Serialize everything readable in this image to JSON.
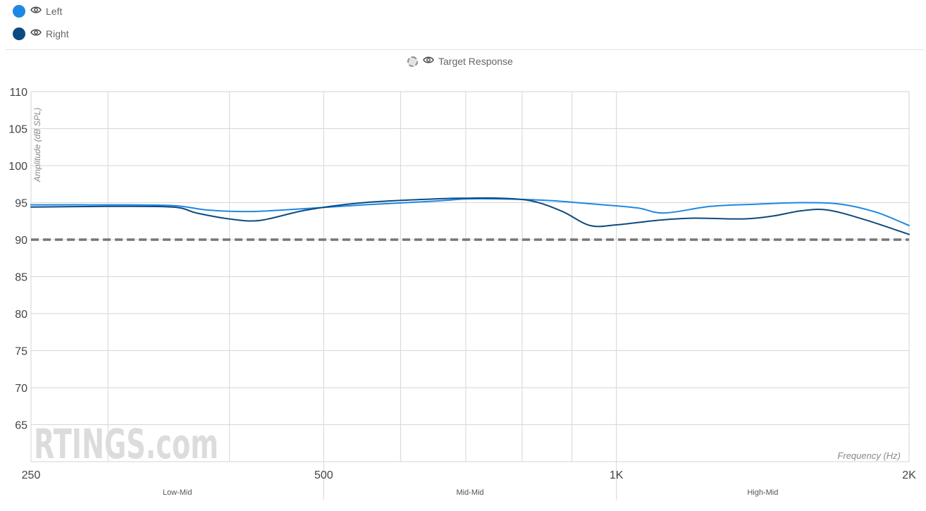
{
  "legend": {
    "items": [
      {
        "label": "Left",
        "color": "#1e88e5",
        "icon": "eye-icon"
      },
      {
        "label": "Right",
        "color": "#0d4a80",
        "icon": "eye-icon"
      }
    ],
    "target": {
      "label": "Target Response",
      "icon": "eye-icon"
    }
  },
  "watermark": "RTINGS.com",
  "chart_data": {
    "type": "line",
    "xlabel": "Frequency (Hz)",
    "ylabel": "Amplitude (dB SPL)",
    "x_scale": "log",
    "xlim": [
      250,
      2000
    ],
    "ylim": [
      60,
      110
    ],
    "x_ticks": [
      {
        "value": 250,
        "label": "250"
      },
      {
        "value": 500,
        "label": "500"
      },
      {
        "value": 1000,
        "label": "1K"
      },
      {
        "value": 2000,
        "label": "2K"
      }
    ],
    "y_ticks": [
      65,
      70,
      75,
      80,
      85,
      90,
      95,
      100,
      105,
      110
    ],
    "x_gridlines": [
      250,
      300,
      400,
      500,
      600,
      700,
      800,
      900,
      1000,
      2000
    ],
    "grid": true,
    "regions": [
      {
        "label": "Low-Mid",
        "from": 250,
        "to": 500
      },
      {
        "label": "Mid-Mid",
        "from": 500,
        "to": 1000
      },
      {
        "label": "High-Mid",
        "from": 1000,
        "to": 2000
      }
    ],
    "target_response": {
      "label": "Target Response",
      "value": 90,
      "color": "#777777",
      "style": "dashed"
    },
    "series": [
      {
        "name": "Left",
        "color": "#1e88e5",
        "x": [
          250,
          300,
          350,
          380,
          420,
          480,
          550,
          650,
          700,
          760,
          850,
          950,
          1050,
          1120,
          1250,
          1400,
          1550,
          1700,
          1850,
          2000
        ],
        "y": [
          94.7,
          94.7,
          94.6,
          94.0,
          93.8,
          94.2,
          94.7,
          95.2,
          95.5,
          95.5,
          95.3,
          94.8,
          94.3,
          93.6,
          94.5,
          94.8,
          95.0,
          94.8,
          93.7,
          91.9
        ]
      },
      {
        "name": "Right",
        "color": "#0d4a80",
        "x": [
          250,
          300,
          350,
          370,
          400,
          430,
          480,
          550,
          650,
          700,
          760,
          820,
          880,
          940,
          1000,
          1100,
          1200,
          1350,
          1450,
          1550,
          1650,
          1800,
          2000
        ],
        "y": [
          94.4,
          94.5,
          94.4,
          93.6,
          92.8,
          92.6,
          94.0,
          95.0,
          95.5,
          95.6,
          95.6,
          95.2,
          93.8,
          91.9,
          92.0,
          92.6,
          92.9,
          92.8,
          93.2,
          93.9,
          94.0,
          92.7,
          90.7
        ]
      }
    ]
  }
}
